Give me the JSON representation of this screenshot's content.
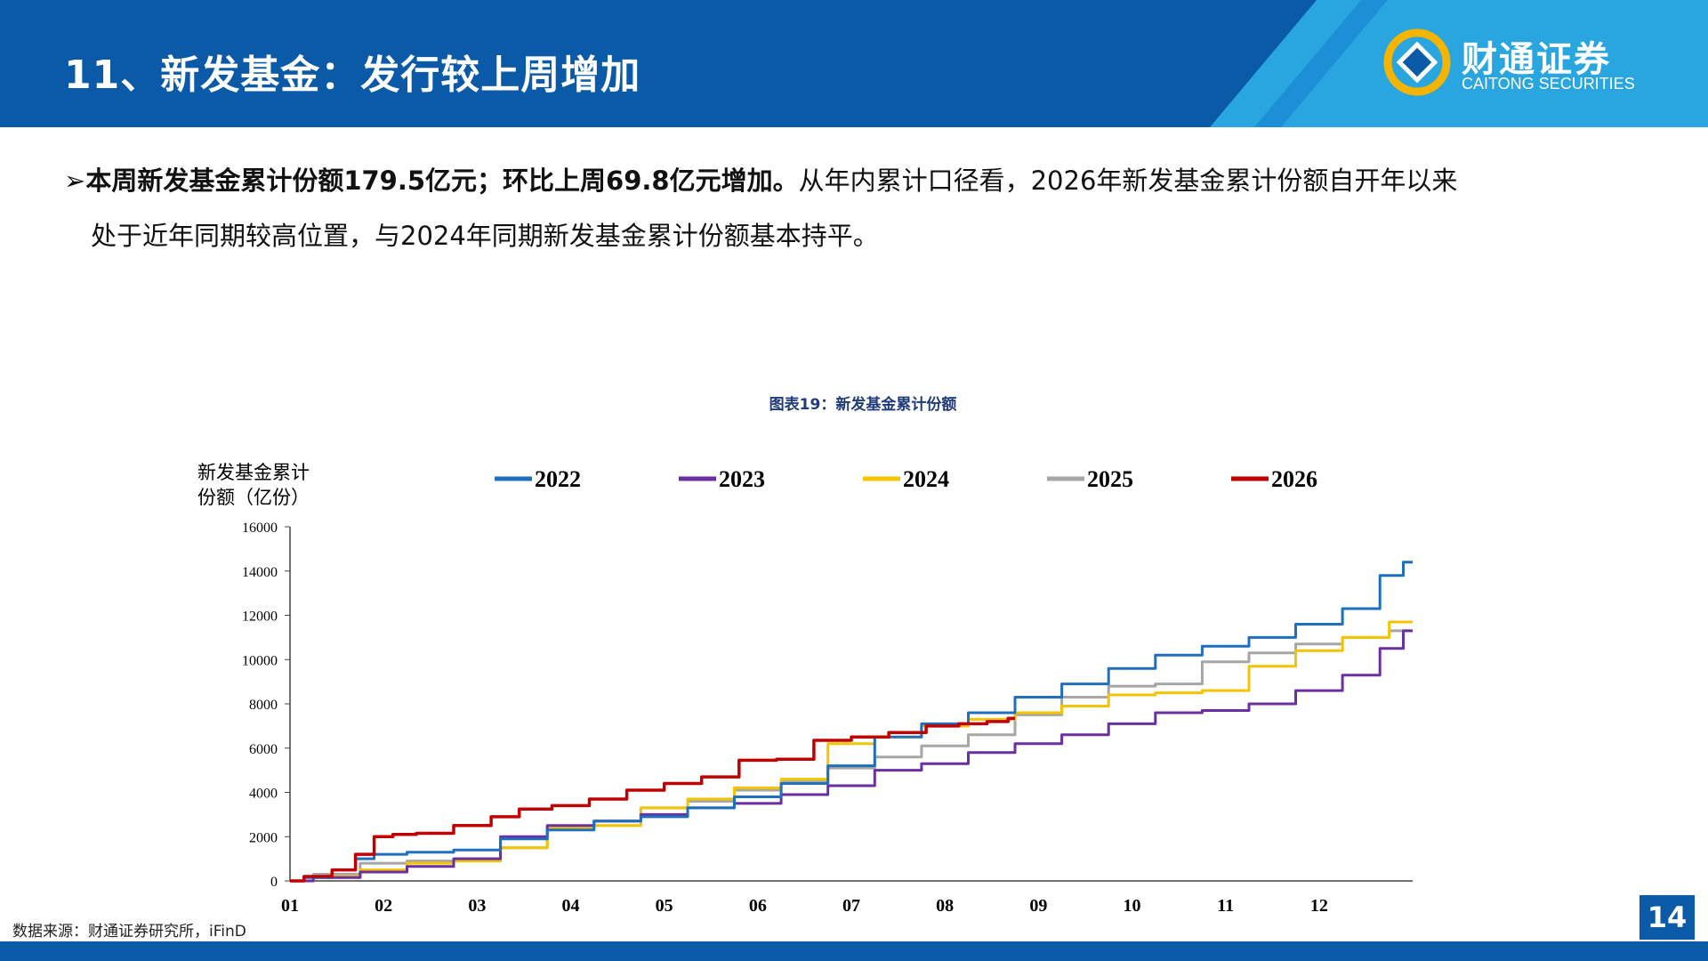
{
  "header": {
    "title": "11、新发基金：发行较上周增加",
    "logo_cn": "财通证券",
    "logo_en": "CAITONG SECURITIES"
  },
  "summary": {
    "bullet": "➢",
    "line1_bold": "本周新发基金累计份额179.5亿元；环比上周69.8亿元增加。",
    "line1_rest": "从年内累计口径看，2026年新发基金累计份额自开年以来",
    "line2": "处于近年同期较高位置，与2024年同期新发基金累计份额基本持平。"
  },
  "chart_caption": "图表19：新发基金累计份额",
  "source": "数据来源：财通证券研究所，iFinD",
  "page_number": "14",
  "colors": {
    "header_blue": "#0a5aa8",
    "header_light": "#29a6e0",
    "s2022": "#1f6fbf",
    "s2023": "#6a2fa0",
    "s2024": "#f5c400",
    "s2025": "#a6a6a6",
    "s2026": "#c00000"
  },
  "chart_data": {
    "type": "line",
    "title": "图表19：新发基金累计份额",
    "ylabel_line1": "新发基金累计",
    "ylabel_line2": "份额（亿份）",
    "xlabel": "",
    "ylim": [
      0,
      16000
    ],
    "yticks": [
      0,
      2000,
      4000,
      6000,
      8000,
      10000,
      12000,
      14000,
      16000
    ],
    "xlim": [
      0,
      12
    ],
    "xticks": [
      "01",
      "02",
      "03",
      "04",
      "05",
      "06",
      "07",
      "08",
      "09",
      "10",
      "11",
      "12"
    ],
    "grid": false,
    "legend_position": "top",
    "series": [
      {
        "name": "2022",
        "color": "#1f6fbf",
        "x": [
          0,
          0.3,
          0.6,
          0.8,
          1.0,
          1.5,
          2.0,
          2.5,
          3.0,
          3.5,
          4.0,
          4.5,
          5.0,
          5.5,
          6.0,
          6.5,
          7.0,
          7.5,
          8.0,
          8.5,
          9.0,
          9.5,
          10.0,
          10.5,
          11.0,
          11.5,
          11.8,
          12.0
        ],
        "y": [
          0,
          150,
          500,
          1000,
          1200,
          1300,
          1400,
          1900,
          2300,
          2700,
          2900,
          3300,
          3800,
          4400,
          5200,
          6500,
          7100,
          7600,
          8300,
          8900,
          9600,
          10200,
          10600,
          11000,
          11600,
          12300,
          13800,
          14400
        ]
      },
      {
        "name": "2023",
        "color": "#6a2fa0",
        "x": [
          0,
          0.5,
          1.0,
          1.5,
          2.0,
          2.5,
          3.0,
          3.5,
          4.0,
          4.5,
          5.0,
          5.5,
          6.0,
          6.5,
          7.0,
          7.5,
          8.0,
          8.5,
          9.0,
          9.5,
          10.0,
          10.5,
          11.0,
          11.5,
          11.8,
          12.0
        ],
        "y": [
          0,
          150,
          400,
          650,
          1000,
          2000,
          2500,
          2700,
          3000,
          3300,
          3500,
          3900,
          4300,
          5000,
          5300,
          5800,
          6200,
          6600,
          7100,
          7600,
          7700,
          8000,
          8600,
          9300,
          10500,
          11300
        ]
      },
      {
        "name": "2024",
        "color": "#f5c400",
        "x": [
          0,
          0.5,
          1.0,
          1.5,
          2.0,
          2.5,
          3.0,
          3.5,
          4.0,
          4.5,
          5.0,
          5.5,
          6.0,
          6.5,
          7.0,
          7.5,
          8.0,
          8.5,
          9.0,
          9.5,
          10.0,
          10.5,
          11.0,
          11.5,
          12.0
        ],
        "y": [
          0,
          200,
          500,
          800,
          900,
          1500,
          2400,
          2500,
          3300,
          3700,
          4200,
          4600,
          6200,
          6500,
          7000,
          7300,
          7600,
          7900,
          8400,
          8500,
          8600,
          9700,
          10400,
          11000,
          11700
        ]
      },
      {
        "name": "2025",
        "color": "#a6a6a6",
        "x": [
          0,
          0.5,
          1.0,
          1.5,
          2.0,
          2.5,
          3.0,
          3.5,
          4.0,
          4.5,
          5.0,
          5.5,
          6.0,
          6.5,
          7.0,
          7.5,
          8.0,
          8.5,
          9.0,
          9.5,
          10.0,
          10.5,
          11.0,
          11.5,
          12.0
        ],
        "y": [
          0,
          300,
          800,
          900,
          1000,
          1500,
          2400,
          2700,
          3300,
          3600,
          4100,
          4500,
          5100,
          5600,
          6100,
          6600,
          7500,
          8300,
          8800,
          8900,
          9900,
          10300,
          10700,
          11000,
          11300
        ]
      },
      {
        "name": "2026",
        "color": "#c00000",
        "x": [
          0,
          0.3,
          0.6,
          0.8,
          1.0,
          1.2,
          1.5,
          2.0,
          2.3,
          2.6,
          3.0,
          3.4,
          3.8,
          4.2,
          4.6,
          5.0,
          5.4,
          5.8,
          6.2,
          6.6,
          7.0,
          7.3,
          7.6,
          7.75
        ],
        "y": [
          0,
          200,
          500,
          1200,
          2000,
          2100,
          2150,
          2500,
          2900,
          3250,
          3400,
          3700,
          4100,
          4400,
          4700,
          5450,
          5500,
          6350,
          6500,
          6700,
          7000,
          7100,
          7200,
          7350
        ]
      }
    ]
  }
}
